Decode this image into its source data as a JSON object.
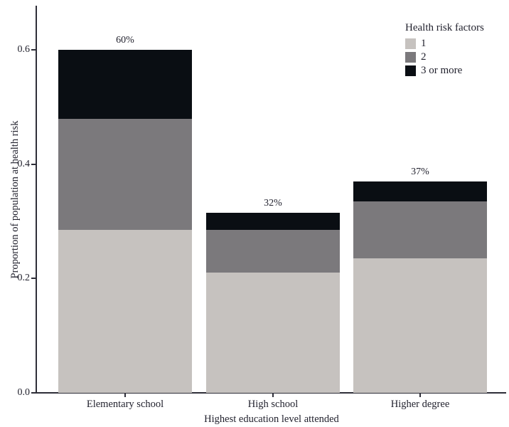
{
  "chart_data": {
    "type": "bar",
    "stacked": true,
    "categories": [
      "Elementary school",
      "High school",
      "Higher degree"
    ],
    "series": [
      {
        "name": "1",
        "color": "#c6c2bf",
        "values": [
          0.285,
          0.21,
          0.235
        ]
      },
      {
        "name": "2",
        "color": "#7b797c",
        "values": [
          0.195,
          0.075,
          0.1
        ]
      },
      {
        "name": "3 or more",
        "color": "#0a0e13",
        "values": [
          0.12,
          0.03,
          0.035
        ]
      }
    ],
    "totals_labels": [
      "60%",
      "32%",
      "37%"
    ],
    "xlabel": "Highest education level attended",
    "ylabel": "Proportion of population at health risk",
    "yticks": [
      0.0,
      0.2,
      0.4,
      0.6
    ],
    "ytick_labels": [
      "0.0",
      "0.2",
      "0.4",
      "0.6"
    ],
    "ylim": [
      0,
      0.678
    ],
    "grid": false,
    "legend": {
      "title": "Health risk factors",
      "position": "top-right"
    }
  },
  "colors": {
    "background": "#ffffff",
    "axis": "#2e2e38",
    "text": "#22222e"
  }
}
